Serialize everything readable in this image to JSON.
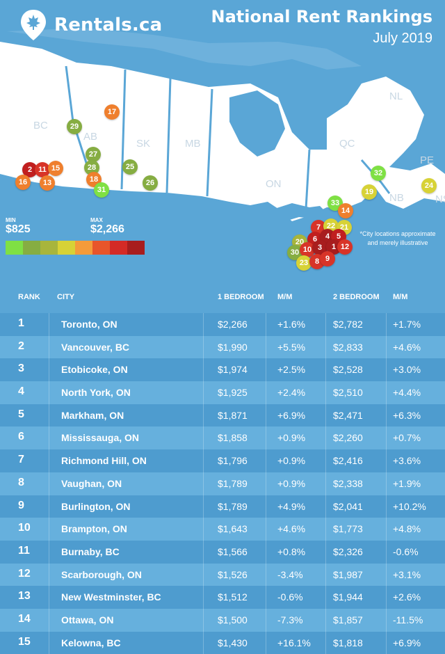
{
  "brand": {
    "name": "Rentals.ca"
  },
  "header": {
    "title": "National Rent Rankings",
    "subtitle": "July 2019"
  },
  "provinces": [
    "BC",
    "AB",
    "SK",
    "MB",
    "ON",
    "QC",
    "NL",
    "PE",
    "NB",
    "NS"
  ],
  "legend": {
    "min_label": "MIN",
    "min_value": "$825",
    "max_label": "MAX",
    "max_value": "$2,266",
    "colors": [
      "#7fe044",
      "#86ad42",
      "#a8b53c",
      "#d7d236",
      "#f49b3a",
      "#e8552a",
      "#d42a26",
      "#a81d1e"
    ]
  },
  "note": "*City locations approximate and merely illustrative",
  "pins": [
    {
      "n": "17",
      "color": "#ef7f2d"
    },
    {
      "n": "29",
      "color": "#86ad42"
    },
    {
      "n": "27",
      "color": "#86ad42"
    },
    {
      "n": "28",
      "color": "#86ad42"
    },
    {
      "n": "25",
      "color": "#86ad42"
    },
    {
      "n": "18",
      "color": "#ef7f2d"
    },
    {
      "n": "31",
      "color": "#7fe044"
    },
    {
      "n": "26",
      "color": "#86ad42"
    },
    {
      "n": "2",
      "color": "#c11f1f"
    },
    {
      "n": "11",
      "color": "#d83428"
    },
    {
      "n": "15",
      "color": "#ef7f2d"
    },
    {
      "n": "16",
      "color": "#ef7f2d"
    },
    {
      "n": "13",
      "color": "#ef7f2d"
    },
    {
      "n": "32",
      "color": "#7fe044"
    },
    {
      "n": "19",
      "color": "#d7d236"
    },
    {
      "n": "24",
      "color": "#d7d236"
    },
    {
      "n": "33",
      "color": "#7fe044"
    },
    {
      "n": "14",
      "color": "#ef7f2d"
    },
    {
      "n": "7",
      "color": "#d83428"
    },
    {
      "n": "22",
      "color": "#d7d236"
    },
    {
      "n": "21",
      "color": "#d7d236"
    },
    {
      "n": "20",
      "color": "#a8b53c"
    },
    {
      "n": "6",
      "color": "#c11f1f"
    },
    {
      "n": "4",
      "color": "#a81d1e"
    },
    {
      "n": "5",
      "color": "#c11f1f"
    },
    {
      "n": "30",
      "color": "#86ad42"
    },
    {
      "n": "10",
      "color": "#d83428"
    },
    {
      "n": "3",
      "color": "#a81d1e"
    },
    {
      "n": "1",
      "color": "#a81d1e"
    },
    {
      "n": "12",
      "color": "#d83428"
    },
    {
      "n": "23",
      "color": "#d7d236"
    },
    {
      "n": "8",
      "color": "#d83428"
    },
    {
      "n": "9",
      "color": "#d83428"
    }
  ],
  "table": {
    "headers": {
      "rank": "RANK",
      "city": "CITY",
      "b1": "1 BEDROOM",
      "m1": "M/M",
      "b2": "2 BEDROOM",
      "m2": "M/M"
    },
    "rows": [
      {
        "rank": "1",
        "city": "Toronto, ON",
        "b1": "$2,266",
        "m1": "+1.6%",
        "b2": "$2,782",
        "m2": "+1.7%"
      },
      {
        "rank": "2",
        "city": "Vancouver, BC",
        "b1": "$1,990",
        "m1": "+5.5%",
        "b2": "$2,833",
        "m2": "+4.6%"
      },
      {
        "rank": "3",
        "city": "Etobicoke, ON",
        "b1": "$1,974",
        "m1": "+2.5%",
        "b2": "$2,528",
        "m2": "+3.0%"
      },
      {
        "rank": "4",
        "city": "North York, ON",
        "b1": "$1,925",
        "m1": "+2.4%",
        "b2": "$2,510",
        "m2": "+4.4%"
      },
      {
        "rank": "5",
        "city": "Markham, ON",
        "b1": "$1,871",
        "m1": "+6.9%",
        "b2": "$2,471",
        "m2": "+6.3%"
      },
      {
        "rank": "6",
        "city": "Mississauga, ON",
        "b1": "$1,858",
        "m1": "+0.9%",
        "b2": "$2,260",
        "m2": "+0.7%"
      },
      {
        "rank": "7",
        "city": "Richmond Hill, ON",
        "b1": "$1,796",
        "m1": "+0.9%",
        "b2": "$2,416",
        "m2": "+3.6%"
      },
      {
        "rank": "8",
        "city": "Vaughan, ON",
        "b1": "$1,789",
        "m1": "+0.9%",
        "b2": "$2,338",
        "m2": "+1.9%"
      },
      {
        "rank": "9",
        "city": "Burlington, ON",
        "b1": "$1,789",
        "m1": "+4.9%",
        "b2": "$2,041",
        "m2": "+10.2%"
      },
      {
        "rank": "10",
        "city": "Brampton, ON",
        "b1": "$1,643",
        "m1": "+4.6%",
        "b2": "$1,773",
        "m2": "+4.8%"
      },
      {
        "rank": "11",
        "city": "Burnaby, BC",
        "b1": "$1,566",
        "m1": "+0.8%",
        "b2": "$2,326",
        "m2": "-0.6%"
      },
      {
        "rank": "12",
        "city": "Scarborough, ON",
        "b1": "$1,526",
        "m1": "-3.4%",
        "b2": "$1,987",
        "m2": "+3.1%"
      },
      {
        "rank": "13",
        "city": "New Westminster, BC",
        "b1": "$1,512",
        "m1": "-0.6%",
        "b2": "$1,944",
        "m2": "+2.6%"
      },
      {
        "rank": "14",
        "city": "Ottawa, ON",
        "b1": "$1,500",
        "m1": "-7.3%",
        "b2": "$1,857",
        "m2": "-11.5%"
      },
      {
        "rank": "15",
        "city": "Kelowna, BC",
        "b1": "$1,430",
        "m1": "+16.1%",
        "b2": "$1,818",
        "m2": "+6.9%"
      }
    ]
  }
}
